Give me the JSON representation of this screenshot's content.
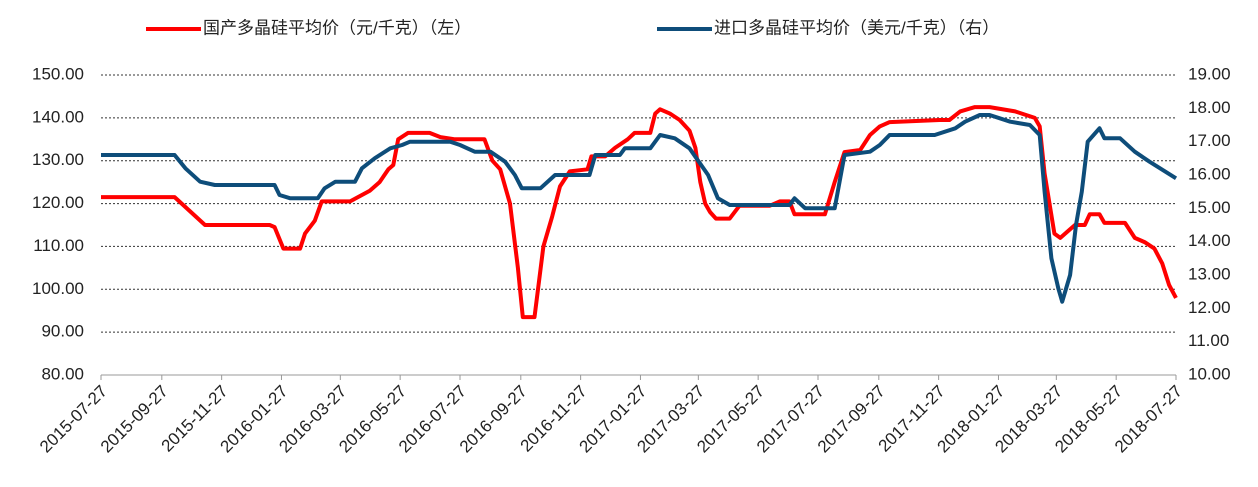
{
  "chart_data": {
    "type": "line",
    "xlim": [
      "2015-07-27",
      "2018-07-27"
    ],
    "xticks": [
      "2015-07-27",
      "2015-09-27",
      "2015-11-27",
      "2016-01-27",
      "2016-03-27",
      "2016-05-27",
      "2016-07-27",
      "2016-09-27",
      "2016-11-27",
      "2017-01-27",
      "2017-03-27",
      "2017-05-27",
      "2017-07-27",
      "2017-09-27",
      "2017-11-27",
      "2018-01-27",
      "2018-03-27",
      "2018-05-27",
      "2018-07-27"
    ],
    "ylim": [
      80,
      150
    ],
    "yticks": [
      {
        "value": 80,
        "label": "80.00"
      },
      {
        "value": 90,
        "label": "90.00"
      },
      {
        "value": 100,
        "label": "100.00"
      },
      {
        "value": 110,
        "label": "110.00"
      },
      {
        "value": 120,
        "label": "120.00"
      },
      {
        "value": 130,
        "label": "130.00"
      },
      {
        "value": 140,
        "label": "140.00"
      },
      {
        "value": 150,
        "label": "150.00"
      }
    ],
    "y2lim": [
      10,
      19
    ],
    "y2ticks": [
      {
        "value": 10,
        "label": "10.00"
      },
      {
        "value": 11,
        "label": "11.00"
      },
      {
        "value": 12,
        "label": "12.00"
      },
      {
        "value": 13,
        "label": "13.00"
      },
      {
        "value": 14,
        "label": "14.00"
      },
      {
        "value": 15,
        "label": "15.00"
      },
      {
        "value": 16,
        "label": "16.00"
      },
      {
        "value": 17,
        "label": "17.00"
      },
      {
        "value": 18,
        "label": "18.00"
      },
      {
        "value": 19,
        "label": "19.00"
      }
    ],
    "grid": true,
    "legend": "top",
    "series": [
      {
        "name": "国产多晶硅平均价（元/千克）（左）",
        "color": "#ff0000",
        "x": [
          "2015-07-27",
          "2015-10-10",
          "2015-11-10",
          "2016-01-15",
          "2016-01-20",
          "2016-01-29",
          "2016-02-15",
          "2016-02-20",
          "2016-03-01",
          "2016-03-08",
          "2016-04-06",
          "2016-04-26",
          "2016-05-06",
          "2016-05-15",
          "2016-05-20",
          "2016-05-25",
          "2016-06-04",
          "2016-06-26",
          "2016-07-07",
          "2016-07-22",
          "2016-08-21",
          "2016-08-29",
          "2016-09-06",
          "2016-09-16",
          "2016-09-24",
          "2016-09-29",
          "2016-10-11",
          "2016-10-20",
          "2016-10-29",
          "2016-11-06",
          "2016-11-16",
          "2016-12-04",
          "2016-12-08",
          "2016-12-22",
          "2017-01-01",
          "2017-01-14",
          "2017-01-21",
          "2017-02-06",
          "2017-02-11",
          "2017-02-16",
          "2017-02-26",
          "2017-03-08",
          "2017-03-18",
          "2017-03-24",
          "2017-03-29",
          "2017-04-03",
          "2017-04-08",
          "2017-04-14",
          "2017-04-28",
          "2017-05-08",
          "2017-06-08",
          "2017-06-18",
          "2017-06-28",
          "2017-07-03",
          "2017-08-03",
          "2017-08-13",
          "2017-08-23",
          "2017-09-08",
          "2017-09-18",
          "2017-09-28",
          "2017-10-08",
          "2017-11-28",
          "2017-12-08",
          "2017-12-19",
          "2018-01-03",
          "2018-01-18",
          "2018-02-13",
          "2018-03-05",
          "2018-03-10",
          "2018-03-15",
          "2018-03-20",
          "2018-03-25",
          "2018-03-31",
          "2018-04-10",
          "2018-04-15",
          "2018-04-25",
          "2018-04-30",
          "2018-05-10",
          "2018-05-15",
          "2018-06-05",
          "2018-06-15",
          "2018-06-25",
          "2018-07-05",
          "2018-07-13",
          "2018-07-20",
          "2018-07-27"
        ],
        "values": [
          121.5,
          121.5,
          115,
          115,
          114.5,
          109.5,
          109.5,
          113,
          116,
          120.5,
          120.5,
          123,
          125,
          128,
          129,
          135,
          136.5,
          136.5,
          135.5,
          135,
          135,
          130,
          128,
          120,
          105,
          93.5,
          93.5,
          110,
          117,
          124,
          127.5,
          128,
          131,
          131,
          133,
          135,
          136.5,
          136.5,
          141,
          142,
          141,
          139.5,
          137,
          133,
          125,
          120,
          118,
          116.5,
          116.5,
          119.5,
          119.5,
          120.5,
          120.5,
          117.5,
          117.5,
          125,
          132,
          132.5,
          136,
          138,
          139,
          139.5,
          139.5,
          141.5,
          142.5,
          142.5,
          141.5,
          140,
          138,
          127,
          120,
          113,
          112,
          114,
          115,
          115,
          117.5,
          117.5,
          115.5,
          115.5,
          112,
          111,
          109.5,
          106,
          101,
          98
        ]
      },
      {
        "name": "进口多晶硅平均价（美元/千克）（右）",
        "color": "#0e4d7a",
        "axis": "y2",
        "x": [
          "2015-07-27",
          "2015-10-10",
          "2015-10-21",
          "2015-11-05",
          "2015-11-20",
          "2016-01-20",
          "2016-01-25",
          "2016-02-05",
          "2016-03-04",
          "2016-03-11",
          "2016-03-22",
          "2016-04-11",
          "2016-04-18",
          "2016-05-01",
          "2016-05-17",
          "2016-05-29",
          "2016-06-06",
          "2016-07-17",
          "2016-07-27",
          "2016-08-11",
          "2016-08-27",
          "2016-09-11",
          "2016-09-21",
          "2016-09-28",
          "2016-10-17",
          "2016-11-01",
          "2016-12-06",
          "2016-12-12",
          "2017-01-06",
          "2017-01-11",
          "2017-02-06",
          "2017-02-16",
          "2017-03-03",
          "2017-03-18",
          "2017-04-06",
          "2017-04-16",
          "2017-04-28",
          "2017-06-28",
          "2017-07-03",
          "2017-07-14",
          "2017-08-13",
          "2017-08-23",
          "2017-09-18",
          "2017-09-28",
          "2017-10-08",
          "2017-11-23",
          "2017-12-14",
          "2017-12-24",
          "2018-01-08",
          "2018-01-18",
          "2018-02-08",
          "2018-02-28",
          "2018-03-10",
          "2018-03-15",
          "2018-03-22",
          "2018-03-29",
          "2018-04-02",
          "2018-04-10",
          "2018-04-16",
          "2018-04-22",
          "2018-04-28",
          "2018-05-10",
          "2018-05-15",
          "2018-05-31",
          "2018-06-15",
          "2018-06-30",
          "2018-07-27"
        ],
        "values": [
          16.6,
          16.6,
          16.2,
          15.8,
          15.7,
          15.7,
          15.4,
          15.3,
          15.3,
          15.6,
          15.8,
          15.8,
          16.2,
          16.5,
          16.8,
          16.9,
          17.0,
          17.0,
          16.9,
          16.7,
          16.7,
          16.4,
          16.0,
          15.6,
          15.6,
          16.0,
          16.0,
          16.6,
          16.6,
          16.8,
          16.8,
          17.2,
          17.1,
          16.8,
          16.0,
          15.3,
          15.1,
          15.1,
          15.3,
          15.0,
          15.0,
          16.6,
          16.7,
          16.9,
          17.2,
          17.2,
          17.4,
          17.6,
          17.8,
          17.8,
          17.6,
          17.5,
          17.2,
          15.5,
          13.5,
          12.6,
          12.2,
          13.0,
          14.5,
          15.5,
          17.0,
          17.4,
          17.1,
          17.1,
          16.7,
          16.4,
          15.9
        ]
      }
    ]
  }
}
